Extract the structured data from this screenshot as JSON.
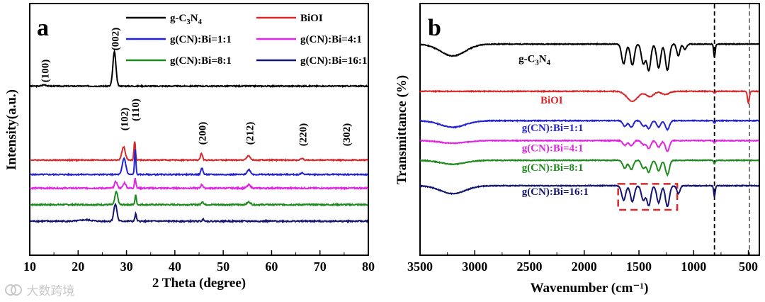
{
  "colors": {
    "gC3N4": "#000000",
    "BiOI": "#d62a2a",
    "r1": "#2323d2",
    "r4": "#e026e0",
    "r8": "#1c8a1c",
    "r16": "#151570",
    "box": "#d62a2a"
  },
  "watermark": {
    "icon": "logo-icon",
    "text": "大数跨境"
  },
  "chart_data": [
    {
      "type": "line",
      "panel": "a",
      "xlabel": "2 Theta (degree)",
      "ylabel": "Intensity(a.u.)",
      "xlim": [
        10,
        80
      ],
      "xticks": [
        "10",
        "20",
        "30",
        "40",
        "50",
        "60",
        "70",
        "80"
      ],
      "legend": [
        {
          "label": "g-C3N4",
          "color_key": "gC3N4"
        },
        {
          "label": "BiOI",
          "color_key": "BiOI"
        },
        {
          "label": "g(CN):Bi=1:1",
          "color_key": "r1"
        },
        {
          "label": "g(CN):Bi=4:1",
          "color_key": "r4"
        },
        {
          "label": "g(CN):Bi=8:1",
          "color_key": "r8"
        },
        {
          "label": "g(CN):Bi=16:1",
          "color_key": "r16"
        }
      ],
      "annotations": [
        {
          "text": "(100)",
          "x": 13.0
        },
        {
          "text": "(002)",
          "x": 27.5
        },
        {
          "text": "(102)",
          "x": 29.4
        },
        {
          "text": "(110)",
          "x": 31.7
        },
        {
          "text": "(200)",
          "x": 45.5
        },
        {
          "text": "(212)",
          "x": 55.3
        },
        {
          "text": "(220)",
          "x": 66.3
        },
        {
          "text": "(302)",
          "x": 75.3
        }
      ],
      "series": [
        {
          "name": "g-C3N4",
          "color_key": "gC3N4",
          "offset": 5.15,
          "noise": 0.02,
          "peaks": [
            [
              13.0,
              0.05,
              0.6
            ],
            [
              27.5,
              1.3,
              0.45
            ]
          ]
        },
        {
          "name": "BiOI",
          "color_key": "BiOI",
          "offset": 2.33,
          "noise": 0.02,
          "peaks": [
            [
              29.4,
              0.5,
              0.5
            ],
            [
              31.7,
              0.72,
              0.22
            ],
            [
              45.5,
              0.25,
              0.3
            ],
            [
              55.2,
              0.17,
              0.5
            ],
            [
              66.3,
              0.06,
              0.4
            ]
          ]
        },
        {
          "name": "g(CN):Bi=1:1",
          "color_key": "r1",
          "offset": 1.78,
          "noise": 0.02,
          "peaks": [
            [
              29.5,
              0.62,
              0.5
            ],
            [
              31.8,
              0.95,
              0.2
            ],
            [
              45.6,
              0.25,
              0.3
            ],
            [
              55.3,
              0.18,
              0.5
            ],
            [
              66.3,
              0.06,
              0.4
            ]
          ]
        },
        {
          "name": "g(CN):Bi=4:1",
          "color_key": "r4",
          "offset": 1.26,
          "noise": 0.025,
          "peaks": [
            [
              27.8,
              0.25,
              0.4
            ],
            [
              29.6,
              0.2,
              0.4
            ],
            [
              31.8,
              0.38,
              0.22
            ],
            [
              45.6,
              0.14,
              0.3
            ],
            [
              55.3,
              0.12,
              0.5
            ]
          ]
        },
        {
          "name": "g(CN):Bi=8:1",
          "color_key": "r8",
          "offset": 0.63,
          "noise": 0.025,
          "peaks": [
            [
              27.9,
              0.5,
              0.4
            ],
            [
              31.9,
              0.36,
              0.22
            ],
            [
              45.7,
              0.12,
              0.3
            ],
            [
              55.3,
              0.1,
              0.5
            ]
          ]
        },
        {
          "name": "g(CN):Bi=16:1",
          "color_key": "r16",
          "offset": 0.0,
          "noise": 0.025,
          "peaks": [
            [
              27.7,
              0.66,
              0.45
            ],
            [
              21.6,
              0.05,
              1.5
            ],
            [
              31.9,
              0.28,
              0.22
            ],
            [
              45.9,
              0.07,
              0.3
            ]
          ]
        }
      ]
    },
    {
      "type": "line",
      "panel": "b",
      "xlabel": "Wavenumber (cm⁻¹)",
      "ylabel": "Transmittance (%)",
      "xlim": [
        3500,
        400
      ],
      "xticks": [
        "3500",
        "3000",
        "2500",
        "2000",
        "1500",
        "1000",
        "500"
      ],
      "reference_lines": [
        810,
        490
      ],
      "highlight_box": {
        "x_range": [
          1690,
          1150
        ],
        "y_range": [
          -0.92,
          0.07
        ],
        "style": "dashed"
      },
      "series": [
        {
          "name": "g-C3N4",
          "label": "g-C3N4",
          "color_key": "gC3N4",
          "offset": 5.4,
          "label_x": 2600,
          "label_dy": 0.55,
          "bands": [
            [
              3200,
              0.45,
              160
            ],
            [
              1640,
              0.75,
              25
            ],
            [
              1560,
              0.8,
              25
            ],
            [
              1460,
              0.75,
              25
            ],
            [
              1410,
              1.0,
              25
            ],
            [
              1320,
              0.9,
              25
            ],
            [
              1240,
              1.0,
              25
            ],
            [
              1140,
              0.45,
              20
            ],
            [
              1080,
              0.2,
              20
            ],
            [
              810,
              0.5,
              10
            ]
          ]
        },
        {
          "name": "BiOI",
          "label": "BiOI",
          "color_key": "BiOI",
          "offset": 3.6,
          "label_x": 2400,
          "label_dy": 0.33,
          "bands": [
            [
              1560,
              0.38,
              70
            ],
            [
              1400,
              0.2,
              50
            ],
            [
              1260,
              0.12,
              50
            ],
            [
              810,
              0.08,
              10
            ],
            [
              500,
              0.45,
              12
            ]
          ]
        },
        {
          "name": "g(CN):Bi=1:1",
          "label": "g(CN):Bi=1:1",
          "color_key": "r1",
          "offset": 2.48,
          "label_x": 2570,
          "label_dy": 0.27,
          "bands": [
            [
              3200,
              0.25,
              160
            ],
            [
              1630,
              0.22,
              25
            ],
            [
              1570,
              0.25,
              25
            ],
            [
              1460,
              0.2,
              25
            ],
            [
              1410,
              0.3,
              25
            ],
            [
              1320,
              0.25,
              25
            ],
            [
              1240,
              0.35,
              25
            ],
            [
              810,
              0.1,
              10
            ]
          ]
        },
        {
          "name": "g(CN):Bi=4:1",
          "label": "g(CN):Bi=4:1",
          "color_key": "r4",
          "offset": 1.72,
          "label_x": 2570,
          "label_dy": 0.27,
          "bands": [
            [
              3200,
              0.1,
              160
            ],
            [
              1630,
              0.18,
              25
            ],
            [
              1570,
              0.2,
              25
            ],
            [
              1460,
              0.15,
              25
            ],
            [
              1410,
              0.3,
              25
            ],
            [
              1320,
              0.25,
              25
            ],
            [
              1240,
              0.4,
              25
            ],
            [
              810,
              0.08,
              10
            ]
          ]
        },
        {
          "name": "g(CN):Bi=8:1",
          "label": "g(CN):Bi=8:1",
          "color_key": "r8",
          "offset": 0.97,
          "label_x": 2570,
          "label_dy": 0.27,
          "bands": [
            [
              3200,
              0.15,
              160
            ],
            [
              1630,
              0.3,
              25
            ],
            [
              1570,
              0.35,
              25
            ],
            [
              1460,
              0.3,
              25
            ],
            [
              1410,
              0.45,
              25
            ],
            [
              1320,
              0.4,
              25
            ],
            [
              1240,
              0.55,
              25
            ],
            [
              810,
              0.12,
              10
            ]
          ]
        },
        {
          "name": "g(CN):Bi=16:1",
          "label": "g(CN):Bi=16:1",
          "color_key": "r16",
          "offset": 0.0,
          "label_x": 2570,
          "label_dy": 0.22,
          "bands": [
            [
              3200,
              0.3,
              160
            ],
            [
              1640,
              0.55,
              25
            ],
            [
              1560,
              0.6,
              25
            ],
            [
              1460,
              0.55,
              25
            ],
            [
              1410,
              0.75,
              25
            ],
            [
              1320,
              0.65,
              25
            ],
            [
              1240,
              0.8,
              25
            ],
            [
              1140,
              0.3,
              20
            ],
            [
              810,
              0.4,
              10
            ]
          ]
        }
      ]
    }
  ]
}
